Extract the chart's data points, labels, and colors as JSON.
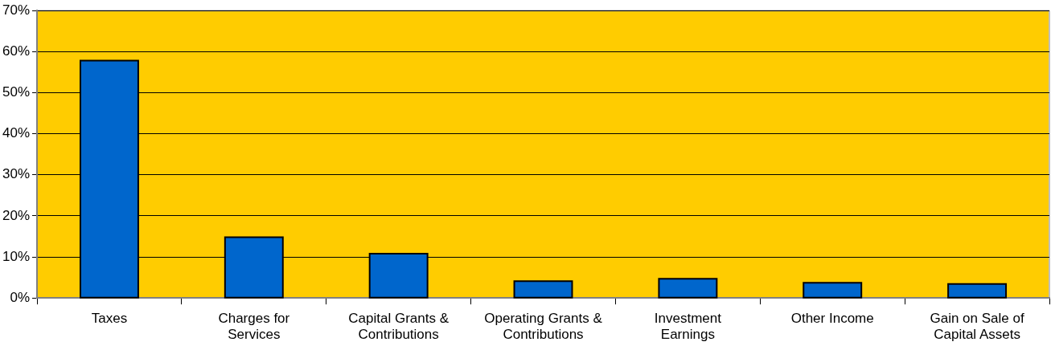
{
  "chart_data": {
    "type": "bar",
    "categories": [
      "Taxes",
      "Charges for Services",
      "Capital Grants & Contributions",
      "Operating Grants & Contributions",
      "Investment Earnings",
      "Other Income",
      "Gain on Sale of Capital Assets"
    ],
    "values": [
      57.8,
      14.8,
      10.8,
      4.1,
      4.7,
      3.7,
      3.4
    ],
    "color": "#0066cc",
    "ylim": [
      0,
      70
    ],
    "yticks": [
      {
        "value": 0,
        "label": "0%"
      },
      {
        "value": 10,
        "label": "10%"
      },
      {
        "value": 20,
        "label": "20%"
      },
      {
        "value": 30,
        "label": "30%"
      },
      {
        "value": 40,
        "label": "40%"
      },
      {
        "value": 50,
        "label": "50%"
      },
      {
        "value": 60,
        "label": "60%"
      },
      {
        "value": 70,
        "label": "70%"
      }
    ],
    "grid": "y",
    "legend": false
  }
}
